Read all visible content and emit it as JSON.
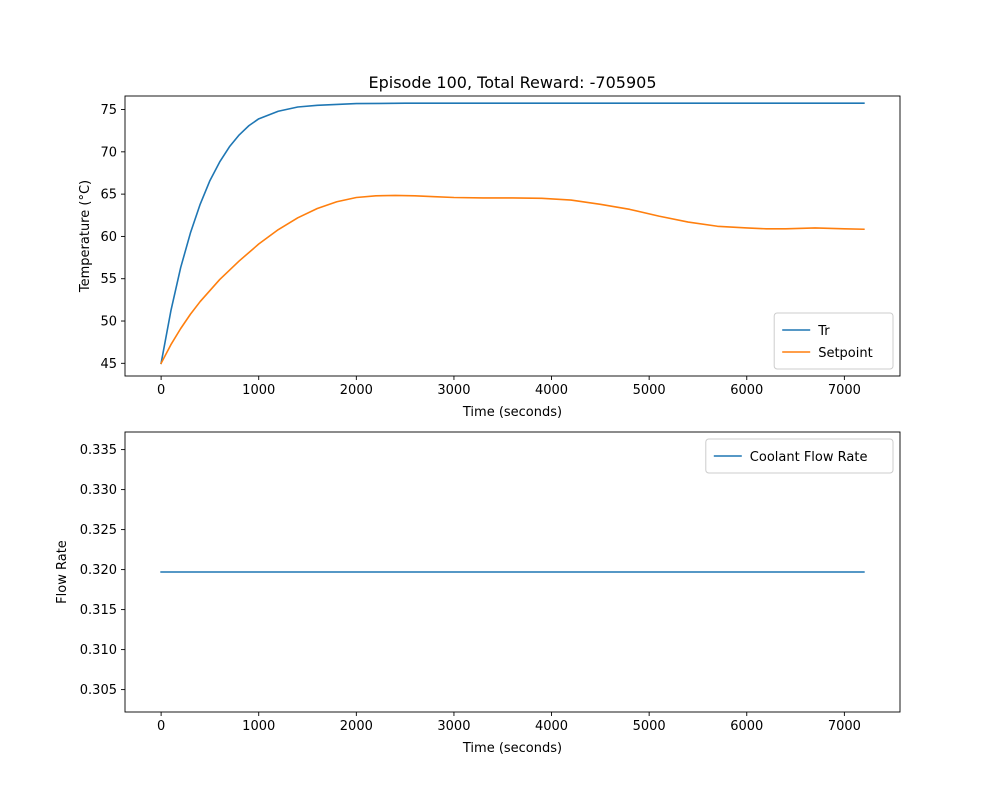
{
  "chart_data": [
    {
      "type": "line",
      "title": "Episode 100, Total Reward: -705905",
      "xlabel": "Time (seconds)",
      "ylabel": "Temperature (°C)",
      "xlim": [
        -370,
        7570
      ],
      "ylim": [
        43.5,
        76.6
      ],
      "xticks": [
        0,
        1000,
        2000,
        3000,
        4000,
        5000,
        6000,
        7000
      ],
      "yticks": [
        45,
        50,
        55,
        60,
        65,
        70,
        75
      ],
      "grid": false,
      "legend_position": "lower-right",
      "series": [
        {
          "name": "Tr",
          "color": "#1f77b4",
          "x": [
            0,
            100,
            200,
            300,
            400,
            500,
            600,
            700,
            800,
            900,
            1000,
            1200,
            1400,
            1600,
            1800,
            2000,
            2500,
            3000,
            3500,
            4000,
            5000,
            6000,
            7200
          ],
          "y": [
            45.0,
            51.2,
            56.3,
            60.4,
            63.8,
            66.6,
            68.8,
            70.6,
            72.0,
            73.1,
            73.9,
            74.8,
            75.3,
            75.5,
            75.6,
            75.7,
            75.75,
            75.75,
            75.75,
            75.75,
            75.75,
            75.75,
            75.75
          ]
        },
        {
          "name": "Setpoint",
          "color": "#ff7f0e",
          "x": [
            0,
            100,
            200,
            300,
            400,
            500,
            600,
            800,
            1000,
            1200,
            1400,
            1600,
            1800,
            2000,
            2200,
            2400,
            2600,
            2800,
            3000,
            3300,
            3600,
            3900,
            4200,
            4500,
            4800,
            5100,
            5400,
            5700,
            6000,
            6200,
            6400,
            6700,
            7000,
            7200
          ],
          "y": [
            45.0,
            47.2,
            49.1,
            50.8,
            52.3,
            53.6,
            54.9,
            57.1,
            59.1,
            60.8,
            62.2,
            63.3,
            64.1,
            64.6,
            64.8,
            64.85,
            64.8,
            64.7,
            64.6,
            64.55,
            64.55,
            64.5,
            64.3,
            63.8,
            63.2,
            62.4,
            61.7,
            61.2,
            61.0,
            60.9,
            60.9,
            61.0,
            60.9,
            60.85
          ]
        }
      ]
    },
    {
      "type": "line",
      "title": "",
      "xlabel": "Time (seconds)",
      "ylabel": "Flow Rate",
      "xlim": [
        -370,
        7570
      ],
      "ylim": [
        0.3022,
        0.3372
      ],
      "xticks": [
        0,
        1000,
        2000,
        3000,
        4000,
        5000,
        6000,
        7000
      ],
      "yticks": [
        0.305,
        0.31,
        0.315,
        0.32,
        0.325,
        0.33,
        0.335
      ],
      "ytick_labels": [
        "0.305",
        "0.310",
        "0.315",
        "0.320",
        "0.325",
        "0.330",
        "0.335"
      ],
      "grid": false,
      "legend_position": "upper-right",
      "series": [
        {
          "name": "Coolant Flow Rate",
          "color": "#1f77b4",
          "x": [
            0,
            7200
          ],
          "y": [
            0.3197,
            0.3197
          ]
        }
      ]
    }
  ]
}
